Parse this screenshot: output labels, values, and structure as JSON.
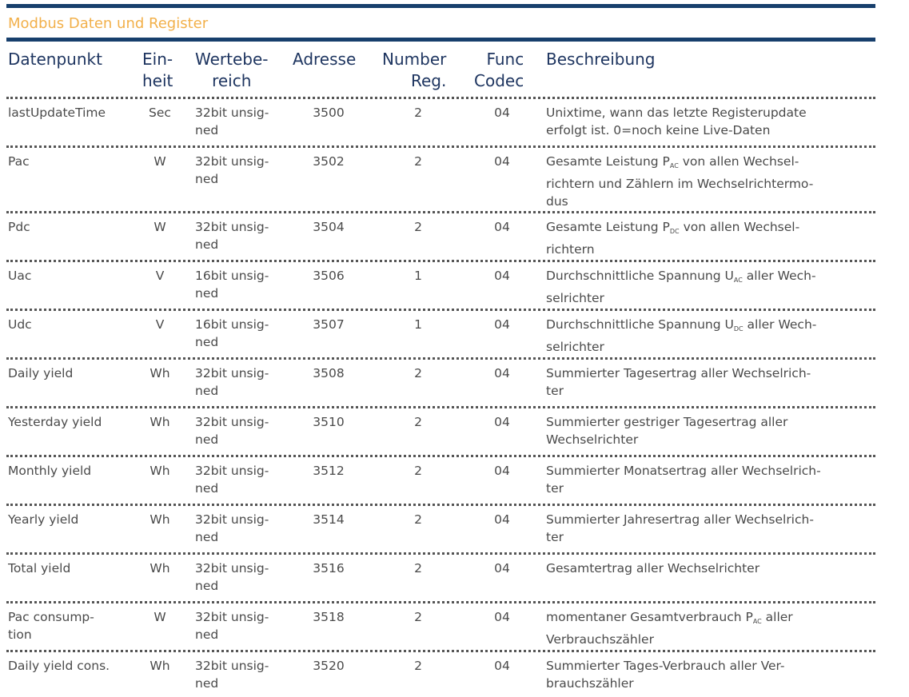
{
  "title": "Modbus Daten und Register",
  "colors": {
    "accent_bar": "#173f6c",
    "title": "#f2b04a",
    "header_text": "#1e3560",
    "body_text": "#4a4a4a"
  },
  "headers": {
    "datenpunkt": "Datenpunkt",
    "einheit": "Ein-\nheit",
    "wertebereich": "Wertebe-\nreich",
    "adresse": "Adresse",
    "number_reg": "Number\nReg.",
    "func_codec": "Func\nCodec",
    "beschreibung": "Beschreibung"
  },
  "rows": [
    {
      "datenpunkt": "lastUpdateTime",
      "einheit": "Sec",
      "wertebereich": "32bit unsig-\nned",
      "adresse": "3500",
      "number_reg": "2",
      "func_codec": "04",
      "desc_pre": "Unixtime, wann das letzte Registerupdate\nerfolgt ist. 0=noch keine Live-Daten",
      "desc_sub": "",
      "desc_post": ""
    },
    {
      "datenpunkt": "Pac",
      "einheit": "W",
      "wertebereich": "32bit unsig-\nned",
      "adresse": "3502",
      "number_reg": "2",
      "func_codec": "04",
      "desc_pre": "Gesamte Leistung P",
      "desc_sub": "AC",
      "desc_post": " von allen Wechsel-\nrichtern und Zählern im Wechselrichtermo-\ndus"
    },
    {
      "datenpunkt": "Pdc",
      "einheit": "W",
      "wertebereich": "32bit unsig-\nned",
      "adresse": "3504",
      "number_reg": "2",
      "func_codec": "04",
      "desc_pre": "Gesamte Leistung P",
      "desc_sub": "DC",
      "desc_post": " von allen Wechsel-\nrichtern"
    },
    {
      "datenpunkt": "Uac",
      "einheit": "V",
      "wertebereich": "16bit unsig-\nned",
      "adresse": "3506",
      "number_reg": "1",
      "func_codec": "04",
      "desc_pre": "Durchschnittliche Spannung U",
      "desc_sub": "AC",
      "desc_post": " aller Wech-\nselrichter"
    },
    {
      "datenpunkt": "Udc",
      "einheit": "V",
      "wertebereich": "16bit unsig-\nned",
      "adresse": "3507",
      "number_reg": "1",
      "func_codec": "04",
      "desc_pre": "Durchschnittliche Spannung U",
      "desc_sub": "DC",
      "desc_post": " aller Wech-\nselrichter"
    },
    {
      "datenpunkt": "Daily yield",
      "einheit": "Wh",
      "wertebereich": "32bit unsig-\nned",
      "adresse": "3508",
      "number_reg": "2",
      "func_codec": "04",
      "desc_pre": "Summierter Tagesertrag aller Wechselrich-\nter",
      "desc_sub": "",
      "desc_post": ""
    },
    {
      "datenpunkt": "Yesterday yield",
      "einheit": "Wh",
      "wertebereich": "32bit unsig-\nned",
      "adresse": "3510",
      "number_reg": "2",
      "func_codec": "04",
      "desc_pre": "Summierter gestriger Tagesertrag aller\nWechselrichter",
      "desc_sub": "",
      "desc_post": ""
    },
    {
      "datenpunkt": "Monthly yield",
      "einheit": "Wh",
      "wertebereich": "32bit unsig-\nned",
      "adresse": "3512",
      "number_reg": "2",
      "func_codec": "04",
      "desc_pre": "Summierter Monatsertrag aller Wechselrich-\nter",
      "desc_sub": "",
      "desc_post": ""
    },
    {
      "datenpunkt": "Yearly yield",
      "einheit": "Wh",
      "wertebereich": "32bit unsig-\nned",
      "adresse": "3514",
      "number_reg": "2",
      "func_codec": "04",
      "desc_pre": "Summierter Jahresertrag aller Wechselrich-\nter",
      "desc_sub": "",
      "desc_post": ""
    },
    {
      "datenpunkt": "Total yield",
      "einheit": "Wh",
      "wertebereich": "32bit unsig-\nned",
      "adresse": "3516",
      "number_reg": "2",
      "func_codec": "04",
      "desc_pre": "Gesamtertrag aller Wechselrichter",
      "desc_sub": "",
      "desc_post": ""
    },
    {
      "datenpunkt": "Pac consump-\ntion",
      "einheit": "W",
      "wertebereich": "32bit unsig-\nned",
      "adresse": "3518",
      "number_reg": "2",
      "func_codec": "04",
      "desc_pre": "momentaner Gesamtverbrauch P",
      "desc_sub": "AC",
      "desc_post": " aller\nVerbrauchszähler"
    },
    {
      "datenpunkt": "Daily yield cons.",
      "einheit": "Wh",
      "wertebereich": "32bit unsig-\nned",
      "adresse": "3520",
      "number_reg": "2",
      "func_codec": "04",
      "desc_pre": "Summierter Tages-Verbrauch aller Ver-\nbrauchszähler",
      "desc_sub": "",
      "desc_post": ""
    }
  ]
}
